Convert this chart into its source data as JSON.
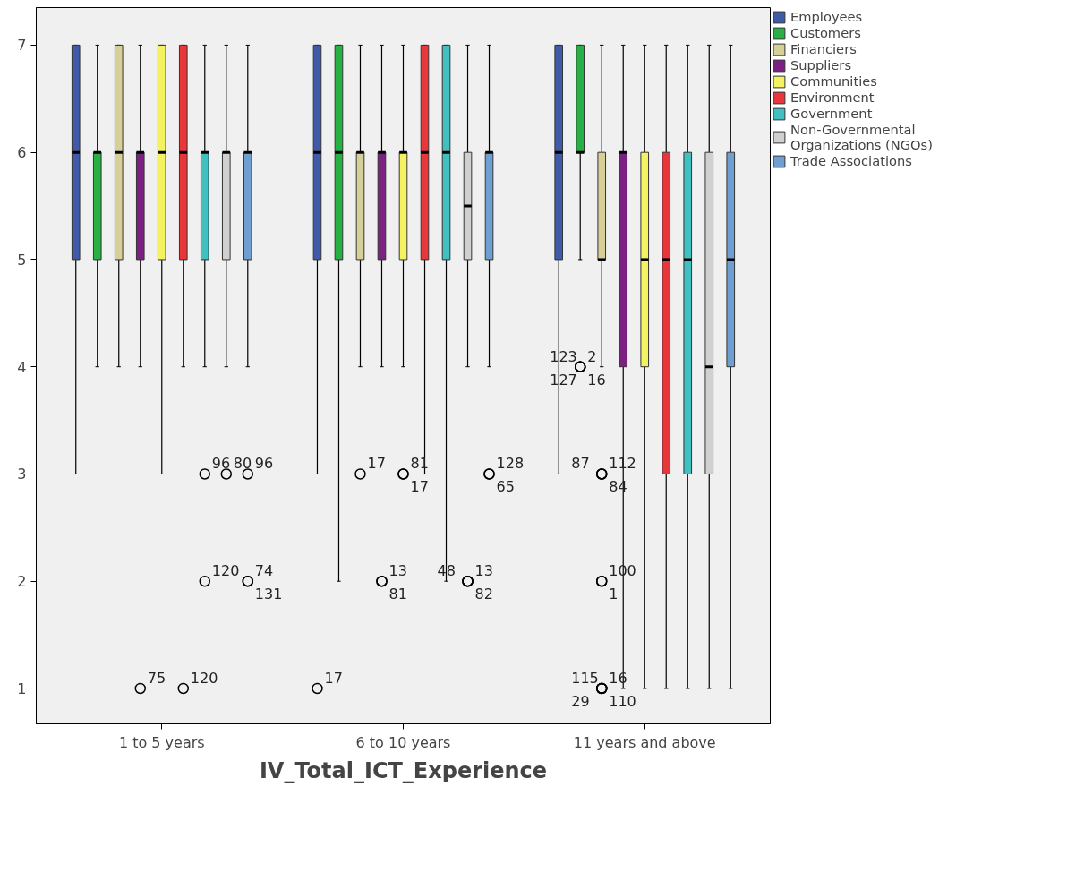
{
  "chart_data": {
    "type": "box",
    "xlabel": "IV_Total_ICT_Experience",
    "categories": [
      "1 to 5 years",
      "6 to 10 years",
      "11 years and above"
    ],
    "ylim": [
      0.67,
      7.35
    ],
    "yticks": [
      1,
      2,
      3,
      4,
      5,
      6,
      7
    ],
    "grid": false,
    "legend": "right",
    "series": [
      {
        "name": "Employees",
        "color": "#3f5aa8",
        "boxes": [
          {
            "low": 3,
            "q1": 5,
            "median": 6,
            "q3": 7,
            "high": 7
          },
          {
            "low": 3,
            "q1": 5,
            "median": 6,
            "q3": 7,
            "high": 7,
            "outliers": [
              1
            ]
          },
          {
            "low": 3,
            "q1": 5,
            "median": 6,
            "q3": 7,
            "high": 7
          }
        ]
      },
      {
        "name": "Customers",
        "color": "#27b043",
        "boxes": [
          {
            "low": 4,
            "q1": 5,
            "median": 6,
            "q3": 6,
            "high": 7
          },
          {
            "low": 2,
            "q1": 5,
            "median": 6,
            "q3": 7,
            "high": 7
          },
          {
            "low": 5,
            "q1": 6,
            "median": 6,
            "q3": 7,
            "high": 7,
            "outliers": [
              4,
              4,
              4,
              4
            ]
          }
        ]
      },
      {
        "name": "Financiers",
        "color": "#d6cf98",
        "boxes": [
          {
            "low": 4,
            "q1": 5,
            "median": 6,
            "q3": 7,
            "high": 7
          },
          {
            "low": 4,
            "q1": 5,
            "median": 6,
            "q3": 6,
            "high": 7,
            "outliers": [
              3
            ]
          },
          {
            "low": 4,
            "q1": 5,
            "median": 5,
            "q3": 6,
            "high": 7,
            "outliers": [
              3,
              3,
              3,
              2,
              2,
              1,
              1,
              1,
              1
            ]
          }
        ]
      },
      {
        "name": "Suppliers",
        "color": "#7b2181",
        "boxes": [
          {
            "low": 4,
            "q1": 5,
            "median": 6,
            "q3": 6,
            "high": 7,
            "outliers": [
              1
            ]
          },
          {
            "low": 4,
            "q1": 5,
            "median": 6,
            "q3": 6,
            "high": 7,
            "outliers": [
              2,
              2
            ]
          },
          {
            "low": 1,
            "q1": 4,
            "median": 6,
            "q3": 6,
            "high": 7
          }
        ]
      },
      {
        "name": "Communities",
        "color": "#f5f262",
        "boxes": [
          {
            "low": 3,
            "q1": 5,
            "median": 6,
            "q3": 7,
            "high": 7
          },
          {
            "low": 4,
            "q1": 5,
            "median": 6,
            "q3": 6,
            "high": 7,
            "outliers": [
              3,
              3
            ]
          },
          {
            "low": 1,
            "q1": 4,
            "median": 5,
            "q3": 6,
            "high": 7
          }
        ]
      },
      {
        "name": "Environment",
        "color": "#e8363b",
        "boxes": [
          {
            "low": 4,
            "q1": 5,
            "median": 6,
            "q3": 7,
            "high": 7,
            "outliers": [
              1
            ]
          },
          {
            "low": 3,
            "q1": 5,
            "median": 6,
            "q3": 7,
            "high": 7
          },
          {
            "low": 1,
            "q1": 3,
            "median": 5,
            "q3": 6,
            "high": 7
          }
        ]
      },
      {
        "name": "Government",
        "color": "#40c0c0",
        "boxes": [
          {
            "low": 4,
            "q1": 5,
            "median": 6,
            "q3": 6,
            "high": 7,
            "outliers": [
              3,
              2
            ]
          },
          {
            "low": 2,
            "q1": 5,
            "median": 6,
            "q3": 7,
            "high": 7
          },
          {
            "low": 1,
            "q1": 3,
            "median": 5,
            "q3": 6,
            "high": 7
          }
        ]
      },
      {
        "name": "Non-Governmental Organizations (NGOs)",
        "color": "#d0d0d0",
        "boxes": [
          {
            "low": 4,
            "q1": 5,
            "median": 6,
            "q3": 6,
            "high": 7,
            "outliers": [
              3
            ]
          },
          {
            "low": 4,
            "q1": 5,
            "median": 5.5,
            "q3": 6,
            "high": 7,
            "outliers": [
              2,
              2,
              2
            ]
          },
          {
            "low": 1,
            "q1": 3,
            "median": 4,
            "q3": 6,
            "high": 7
          }
        ]
      },
      {
        "name": "Trade Associations",
        "color": "#6f9fd0",
        "boxes": [
          {
            "low": 4,
            "q1": 5,
            "median": 6,
            "q3": 6,
            "high": 7,
            "outliers": [
              3,
              2,
              2
            ]
          },
          {
            "low": 4,
            "q1": 5,
            "median": 6,
            "q3": 6,
            "high": 7,
            "outliers": [
              3,
              3
            ]
          },
          {
            "low": 1,
            "q1": 4,
            "median": 5,
            "q3": 6,
            "high": 7
          }
        ]
      }
    ],
    "annotations": [
      "75",
      "120",
      "96",
      "120",
      "80",
      "96",
      "74",
      "131",
      "17",
      "17",
      "13",
      "81",
      "81",
      "17",
      "13",
      "82",
      "48",
      "128",
      "65",
      "2",
      "16",
      "123",
      "127",
      "112",
      "84",
      "87",
      "100",
      "1",
      "16",
      "110",
      "115",
      "29"
    ]
  }
}
